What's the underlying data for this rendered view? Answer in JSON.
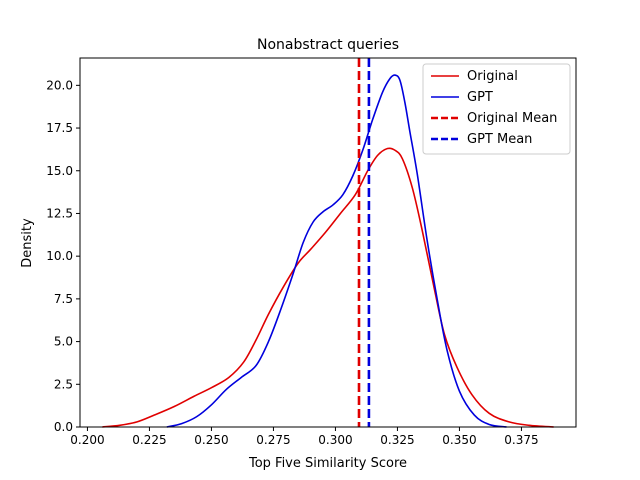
{
  "chart_data": {
    "type": "line",
    "title": "Nonabstract queries",
    "xlabel": "Top Five Similarity Score",
    "ylabel": "Density",
    "xlim": [
      0.197,
      0.397
    ],
    "ylim": [
      0,
      21.6
    ],
    "x_ticks": [
      0.2,
      0.225,
      0.25,
      0.275,
      0.3,
      0.325,
      0.35,
      0.375
    ],
    "x_tick_labels": [
      "0.200",
      "0.225",
      "0.250",
      "0.275",
      "0.300",
      "0.325",
      "0.350",
      "0.375"
    ],
    "y_ticks": [
      0,
      2.5,
      5,
      7.5,
      10,
      12.5,
      15,
      17.5,
      20
    ],
    "y_tick_labels": [
      "0.0",
      "2.5",
      "5.0",
      "7.5",
      "10.0",
      "12.5",
      "15.0",
      "17.5",
      "20.0"
    ],
    "grid": false,
    "legend_position": "top-right",
    "series": [
      {
        "name": "Original",
        "color": "#e00000",
        "style": "solid",
        "x": [
          0.206,
          0.213,
          0.22,
          0.227,
          0.235,
          0.243,
          0.25,
          0.257,
          0.263,
          0.268,
          0.273,
          0.279,
          0.285,
          0.29,
          0.296,
          0.302,
          0.308,
          0.313,
          0.317,
          0.321,
          0.324,
          0.327,
          0.331,
          0.335,
          0.34,
          0.344,
          0.349,
          0.355,
          0.362,
          0.37,
          0.378,
          0.388
        ],
        "y": [
          0.0,
          0.1,
          0.3,
          0.7,
          1.2,
          1.8,
          2.3,
          2.9,
          3.8,
          5.1,
          6.6,
          8.2,
          9.6,
          10.4,
          11.4,
          12.5,
          13.6,
          15.0,
          15.9,
          16.3,
          16.2,
          15.7,
          14.0,
          11.5,
          8.0,
          5.4,
          3.5,
          1.9,
          0.8,
          0.3,
          0.1,
          0.0
        ]
      },
      {
        "name": "GPT",
        "color": "#0000dd",
        "style": "solid",
        "x": [
          0.232,
          0.238,
          0.244,
          0.25,
          0.256,
          0.262,
          0.268,
          0.273,
          0.278,
          0.283,
          0.287,
          0.291,
          0.295,
          0.299,
          0.303,
          0.307,
          0.311,
          0.315,
          0.319,
          0.322,
          0.324,
          0.326,
          0.328,
          0.33,
          0.333,
          0.337,
          0.341,
          0.345,
          0.35,
          0.356,
          0.362,
          0.369
        ],
        "y": [
          0.0,
          0.2,
          0.6,
          1.3,
          2.2,
          2.9,
          3.6,
          5.0,
          6.9,
          9.0,
          10.8,
          12.0,
          12.6,
          13.0,
          13.6,
          14.7,
          16.2,
          18.0,
          19.6,
          20.4,
          20.6,
          20.3,
          19.0,
          17.3,
          14.8,
          10.9,
          7.5,
          4.5,
          2.1,
          0.7,
          0.15,
          0.0
        ]
      }
    ],
    "vlines": [
      {
        "name": "Original Mean",
        "x": 0.3095,
        "color": "#e00000",
        "style": "dashed"
      },
      {
        "name": "GPT Mean",
        "x": 0.3135,
        "color": "#0000dd",
        "style": "dashed"
      }
    ]
  }
}
